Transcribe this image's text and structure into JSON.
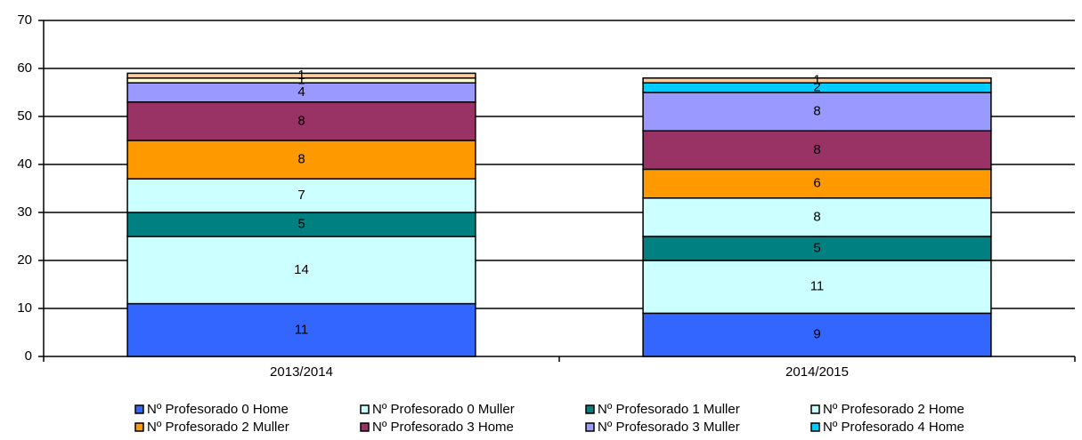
{
  "chart_data": {
    "type": "stacked_bar",
    "categories": [
      "2013/2014",
      "2014/2015"
    ],
    "series": [
      {
        "name": "Nº Profesorado 0 Home",
        "color": "#3366ff",
        "values": [
          11,
          9
        ]
      },
      {
        "name": "Nº Profesorado 0 Muller",
        "color": "#ccffff",
        "values": [
          14,
          11
        ]
      },
      {
        "name": "Nº Profesorado 1 Muller",
        "color": "#008080",
        "values": [
          5,
          5
        ]
      },
      {
        "name": "Nº Profesorado 2 Home",
        "color": "#ccffff",
        "values": [
          7,
          8
        ]
      },
      {
        "name": "Nº Profesorado 2 Muller",
        "color": "#ff9900",
        "values": [
          8,
          6
        ]
      },
      {
        "name": "Nº Profesorado 3 Home",
        "color": "#993366",
        "values": [
          8,
          8
        ]
      },
      {
        "name": "Nº Profesorado 3 Muller",
        "color": "#9999ff",
        "values": [
          4,
          8
        ]
      },
      {
        "name": "Nº Profesorado 4 Home",
        "color": "#00ccff",
        "values": [
          0,
          2
        ]
      },
      {
        "name": null,
        "color": "#ffffcc",
        "values": [
          1,
          0
        ]
      },
      {
        "name": null,
        "color": "#ffcc99",
        "values": [
          1,
          1
        ]
      }
    ],
    "ylim": [
      0,
      70
    ],
    "yticks": [
      0,
      10,
      20,
      30,
      40,
      50,
      60,
      70
    ],
    "grid": true
  }
}
